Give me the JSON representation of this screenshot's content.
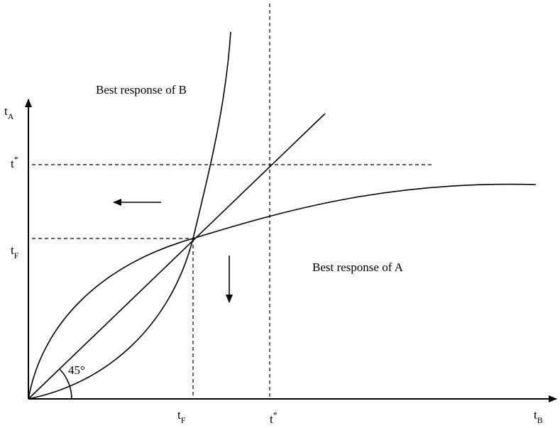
{
  "axes": {
    "y_label": {
      "base": "t",
      "sub": "A"
    },
    "x_label": {
      "base": "t",
      "sub": "B"
    }
  },
  "y_ticks": [
    {
      "base": "t",
      "sup": "*"
    },
    {
      "base": "t",
      "sub": "F"
    }
  ],
  "x_ticks": [
    {
      "base": "t",
      "sub": "F"
    },
    {
      "base": "t",
      "sup": "*"
    }
  ],
  "curves": [
    {
      "label": "Best response of B"
    },
    {
      "label": "Best response of A"
    }
  ],
  "angle_label": "45°"
}
